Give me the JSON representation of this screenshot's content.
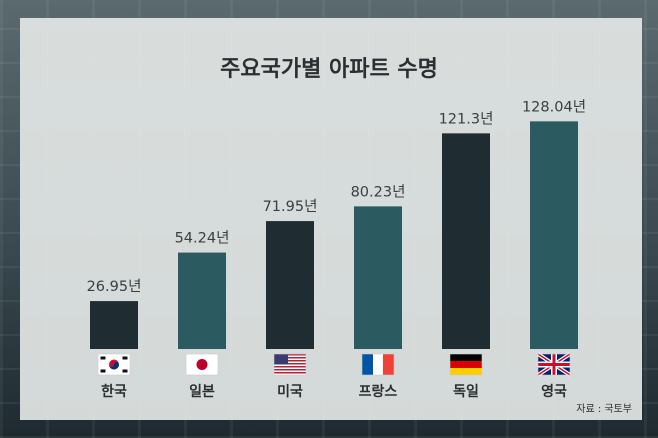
{
  "chart_data": {
    "type": "bar",
    "title": "주요국가별 아파트 수명",
    "categories": [
      "한국",
      "일본",
      "미국",
      "프랑스",
      "독일",
      "영국"
    ],
    "values": [
      26.95,
      54.24,
      71.95,
      80.23,
      121.3,
      128.04
    ],
    "value_labels": [
      "26.95년",
      "54.24년",
      "71.95년",
      "80.23년",
      "121.3년",
      "128.04년"
    ],
    "flags": [
      "flag-korea-icon",
      "flag-japan-icon",
      "flag-usa-icon",
      "flag-france-icon",
      "flag-germany-icon",
      "flag-uk-icon"
    ],
    "bar_colors": [
      "#1f2d33",
      "#2b5a60",
      "#1f2d33",
      "#2b5a60",
      "#1f2d33",
      "#2b5a60"
    ],
    "xlabel": "",
    "ylabel": "",
    "ylim": [
      0,
      135
    ],
    "grid": false,
    "legend": "none"
  },
  "source": "자료 : 국토부"
}
